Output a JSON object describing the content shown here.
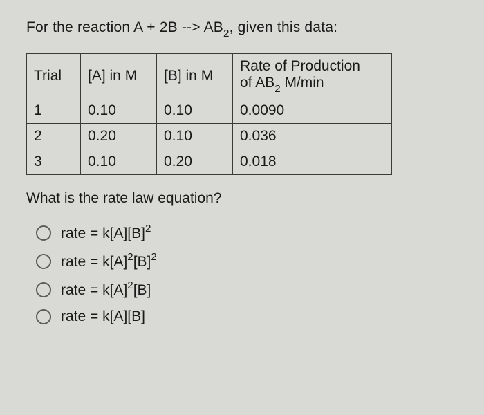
{
  "question": {
    "prefix": "For the reaction A + 2B --> AB",
    "sub1": "2",
    "suffix": ", given this data:"
  },
  "table": {
    "headers": {
      "trial": "Trial",
      "a": "[A] in M",
      "b": "[B] in M",
      "rate_line1": "Rate of Production",
      "rate_line2_pre": "of AB",
      "rate_line2_sub": "2",
      "rate_line2_post": " M/min"
    },
    "rows": [
      {
        "trial": "1",
        "a": "0.10",
        "b": "0.10",
        "rate": "0.0090"
      },
      {
        "trial": "2",
        "a": "0.20",
        "b": "0.10",
        "rate": "0.036"
      },
      {
        "trial": "3",
        "a": "0.10",
        "b": "0.20",
        "rate": "0.018"
      }
    ]
  },
  "prompt": "What is the rate law equation?",
  "options": [
    {
      "pre": "rate = k[A][B]",
      "sup": "2",
      "post": ""
    },
    {
      "pre": "rate = k[A]",
      "sup": "2",
      "mid": "[B]",
      "sup2": "2",
      "post": ""
    },
    {
      "pre": "rate = k[A]",
      "sup": "2",
      "mid": "[B]",
      "sup2": "",
      "post": ""
    },
    {
      "pre": "rate = k[A][B]",
      "sup": "",
      "post": ""
    }
  ],
  "colors": {
    "background": "#d9dad5",
    "text": "#1a1a1a",
    "border": "#3a3a3a",
    "radio_border": "#5b5b5b"
  },
  "font_sizes": {
    "body": 21,
    "sub": 15
  }
}
